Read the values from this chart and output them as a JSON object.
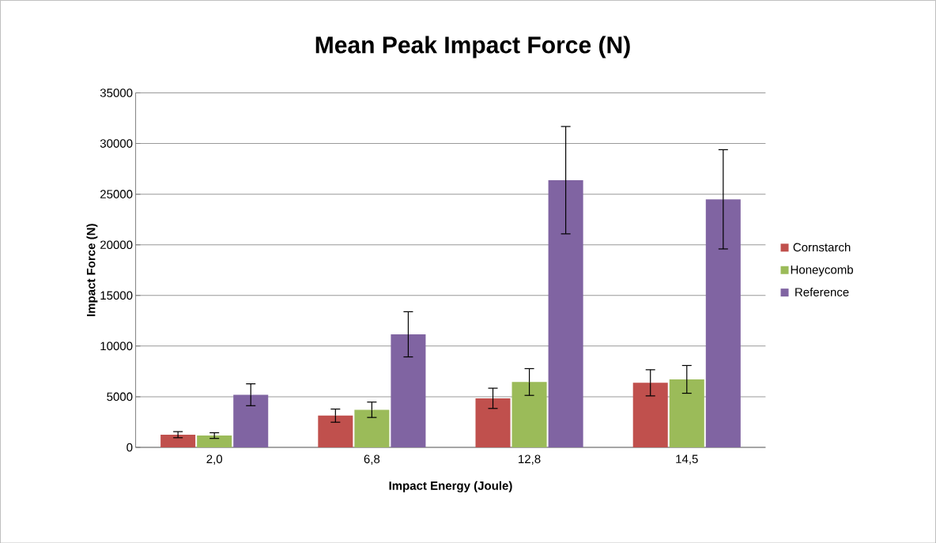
{
  "chart_data": {
    "type": "bar",
    "title": "Mean Peak Impact Force (N)",
    "xlabel": "Impact Energy (Joule)",
    "ylabel": "Impact Force (N)",
    "categories": [
      "2,0",
      "6,8",
      "12,8",
      "14,5"
    ],
    "series": [
      {
        "name": "Cornstarch",
        "color": "#c0504d",
        "values": [
          1250,
          3130,
          4840,
          6370
        ],
        "errors": [
          300,
          650,
          1000,
          1290
        ]
      },
      {
        "name": "Honeycomb",
        "color": "#9bbb59",
        "values": [
          1160,
          3710,
          6450,
          6710
        ],
        "errors": [
          280,
          760,
          1320,
          1370
        ]
      },
      {
        "name": "Reference",
        "color": "#8064a2",
        "values": [
          5190,
          11160,
          26380,
          24490
        ],
        "errors": [
          1080,
          2230,
          5300,
          4900
        ]
      }
    ],
    "ylim": [
      0,
      35000
    ],
    "yticks": [
      0,
      5000,
      10000,
      15000,
      20000,
      25000,
      30000,
      35000
    ],
    "grid": "y",
    "legend": "right"
  }
}
